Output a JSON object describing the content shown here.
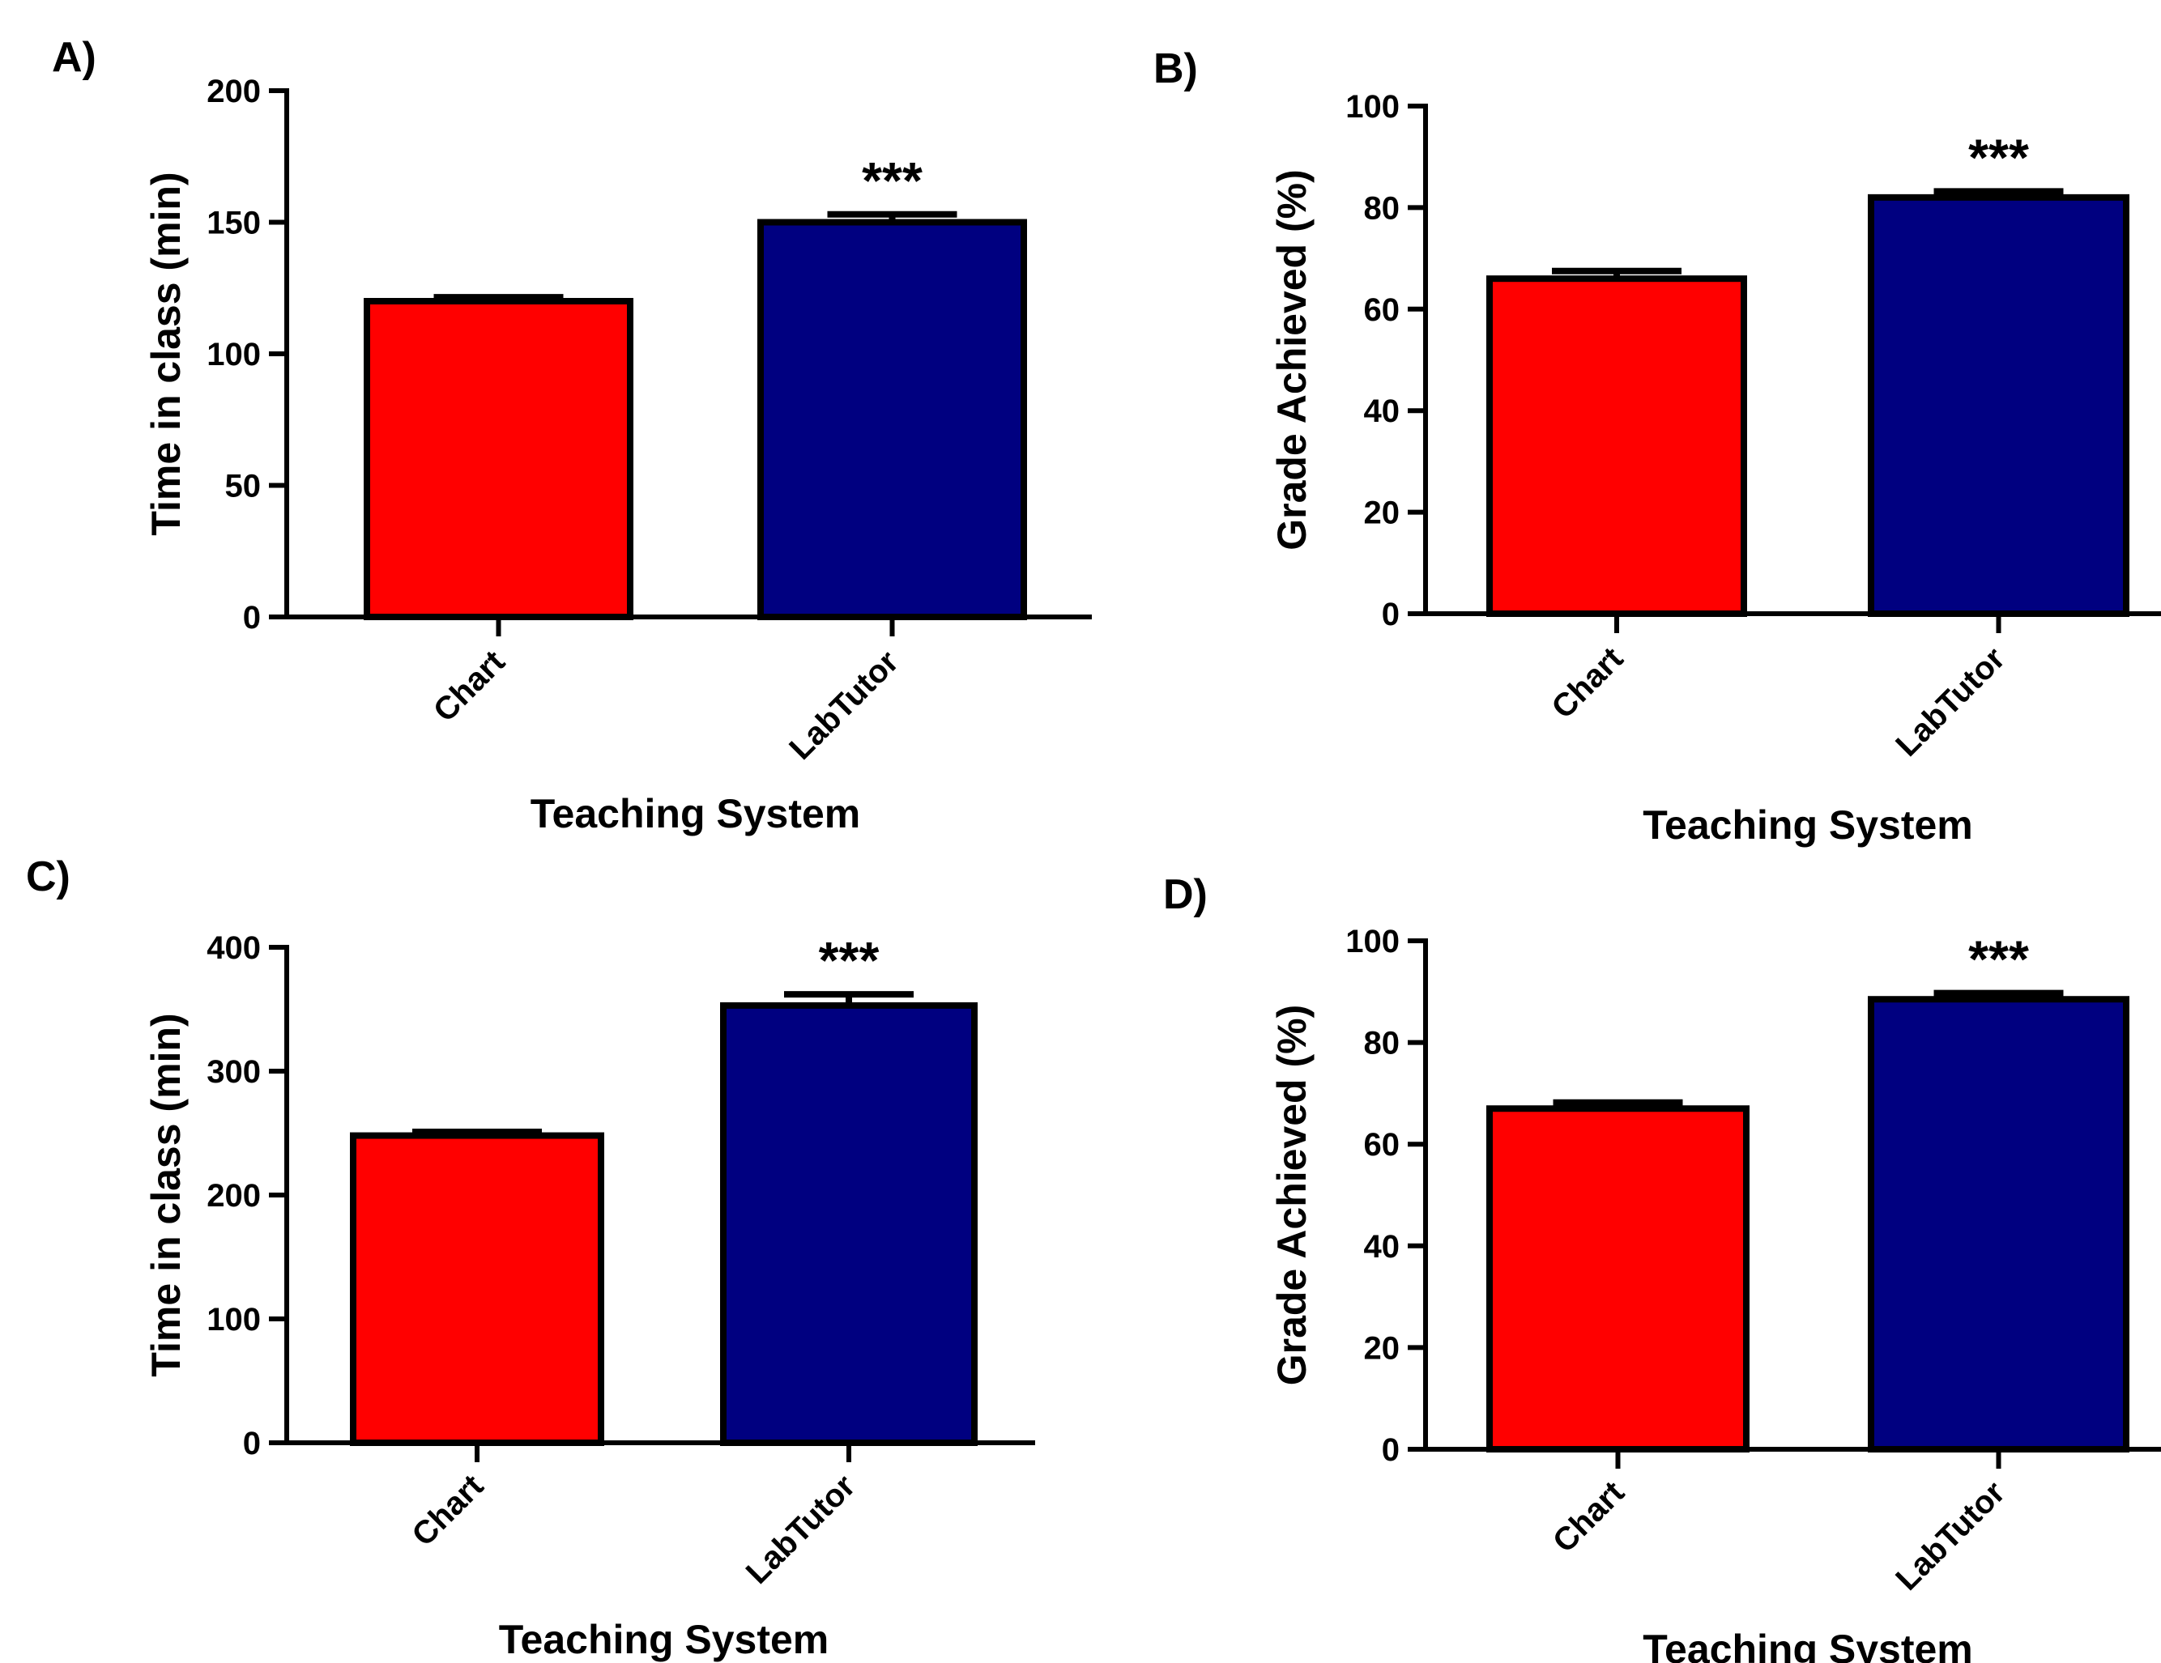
{
  "chart_data": [
    {
      "type": "bar",
      "panel_label": "A)",
      "categories": [
        "Chart",
        "LabTutor"
      ],
      "values": [
        120,
        150
      ],
      "errors": [
        1.5,
        3
      ],
      "colors": [
        "#ff0000",
        "#000080"
      ],
      "significance": [
        "",
        "***"
      ],
      "xlabel": "Teaching System",
      "ylabel": "Time in class (min)",
      "ylim": [
        0,
        200
      ],
      "yticks": [
        0,
        50,
        100,
        150,
        200
      ],
      "grid": false
    },
    {
      "type": "bar",
      "panel_label": "B)",
      "categories": [
        "Chart",
        "LabTutor"
      ],
      "values": [
        66,
        82
      ],
      "errors": [
        1.5,
        1.2
      ],
      "colors": [
        "#ff0000",
        "#000080"
      ],
      "significance": [
        "",
        "***"
      ],
      "xlabel": "Teaching System",
      "ylabel": "Grade Achieved (%)",
      "ylim": [
        0,
        100
      ],
      "yticks": [
        0,
        20,
        40,
        60,
        80,
        100
      ],
      "grid": false
    },
    {
      "type": "bar",
      "panel_label": "C)",
      "categories": [
        "Chart",
        "LabTutor"
      ],
      "values": [
        248,
        353
      ],
      "errors": [
        3,
        9
      ],
      "colors": [
        "#ff0000",
        "#000080"
      ],
      "significance": [
        "",
        "***"
      ],
      "xlabel": "Teaching System",
      "ylabel": "Time in class (min)",
      "ylim": [
        0,
        400
      ],
      "yticks": [
        0,
        100,
        200,
        300,
        400
      ],
      "grid": false
    },
    {
      "type": "bar",
      "panel_label": "D)",
      "categories": [
        "Chart",
        "LabTutor"
      ],
      "values": [
        67,
        88.5
      ],
      "errors": [
        1.2,
        1.2
      ],
      "colors": [
        "#ff0000",
        "#000080"
      ],
      "significance": [
        "",
        "***"
      ],
      "xlabel": "Teaching System",
      "ylabel": "Grade Achieved (%)",
      "ylim": [
        0,
        100
      ],
      "yticks": [
        0,
        20,
        40,
        60,
        80,
        100
      ],
      "grid": false
    }
  ]
}
